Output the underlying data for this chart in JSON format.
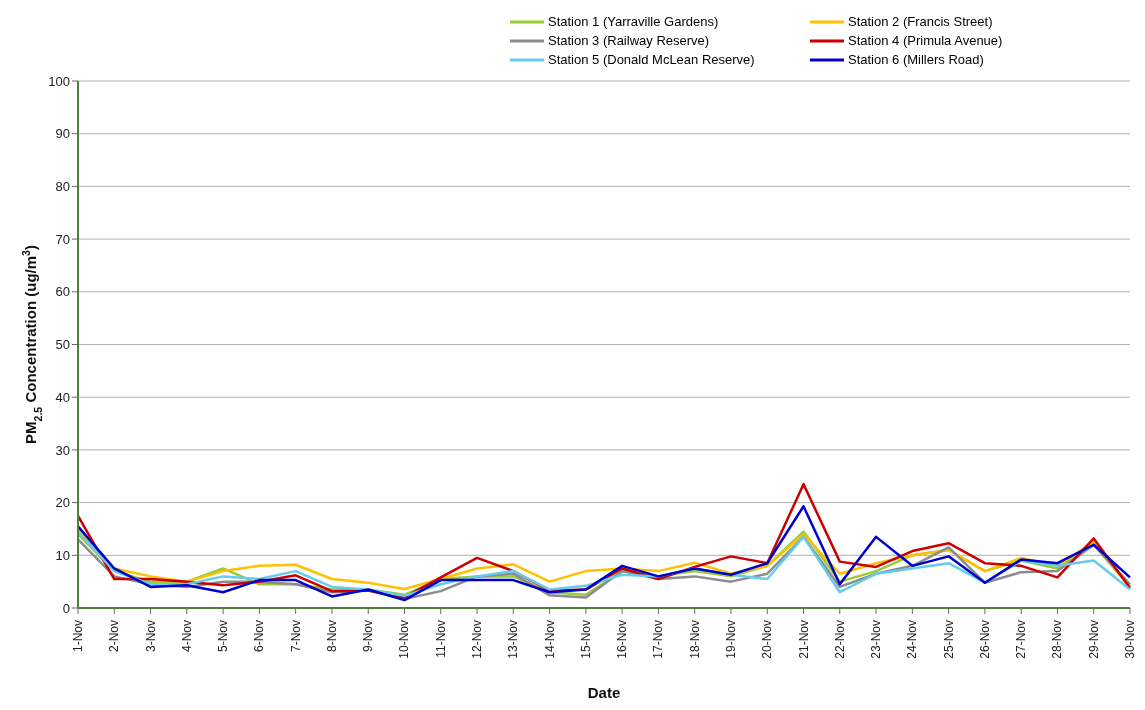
{
  "chart_data": {
    "type": "line",
    "xlabel": "Date",
    "ylabel": "PM$_{2.5}$ Concentration (ug/m$^{3}$)",
    "categories": [
      "1-Nov",
      "2-Nov",
      "3-Nov",
      "4-Nov",
      "5-Nov",
      "6-Nov",
      "7-Nov",
      "8-Nov",
      "9-Nov",
      "10-Nov",
      "11-Nov",
      "12-Nov",
      "13-Nov",
      "14-Nov",
      "15-Nov",
      "16-Nov",
      "17-Nov",
      "18-Nov",
      "19-Nov",
      "20-Nov",
      "21-Nov",
      "22-Nov",
      "23-Nov",
      "24-Nov",
      "25-Nov",
      "26-Nov",
      "27-Nov",
      "28-Nov",
      "29-Nov",
      "30-Nov"
    ],
    "series": [
      {
        "name": "Station 1 (Yarraville Gardens)",
        "color": "#99cc33",
        "values": [
          14,
          7,
          5,
          5,
          7.5,
          4.5,
          4.5,
          3.5,
          3.5,
          2.5,
          5.5,
          6,
          6,
          3,
          2.5,
          7,
          6,
          7,
          6,
          8,
          14.5,
          5,
          7,
          10,
          11,
          7,
          9,
          7.5,
          12,
          4
        ]
      },
      {
        "name": "Station 2 (Francis Street)",
        "color": "#ffc000",
        "values": [
          15,
          7.5,
          6,
          5,
          7,
          8,
          8.2,
          5.5,
          4.8,
          3.6,
          5.5,
          7.5,
          8.3,
          5,
          7,
          7.5,
          7,
          8.6,
          6.5,
          8,
          14,
          6.5,
          8.5,
          10,
          11,
          7,
          9.5,
          8,
          12.5,
          4
        ]
      },
      {
        "name": "Station 3 (Railway Reserve)",
        "color": "#8c8c8c",
        "values": [
          13,
          6,
          4.5,
          4,
          5,
          5,
          4.5,
          3,
          3.3,
          1.7,
          3.2,
          6,
          6.5,
          2.4,
          2,
          7,
          5.5,
          6,
          5,
          6.5,
          13.5,
          4,
          6.5,
          8,
          11.5,
          4.8,
          6.8,
          7,
          12,
          4.5
        ]
      },
      {
        "name": "Station 4 (Primula Avenue)",
        "color": "#cc0000",
        "values": [
          17.5,
          5.5,
          5.5,
          5,
          4.3,
          5,
          6.2,
          3.2,
          3.3,
          2,
          5.8,
          9.5,
          7,
          3.3,
          3.5,
          7.5,
          5.5,
          7.8,
          9.8,
          8.5,
          23.5,
          8.8,
          7.8,
          10.8,
          12.3,
          8.5,
          8,
          5.8,
          13.2,
          3.8
        ]
      },
      {
        "name": "Station 5 (Donald McLean Reserve)",
        "color": "#66ccee",
        "values": [
          14.5,
          7,
          4.5,
          4.5,
          6,
          5.5,
          7,
          4,
          3.5,
          2.3,
          4.5,
          6,
          7,
          3.5,
          4.2,
          6.3,
          6,
          7.5,
          6.3,
          5.5,
          13.5,
          3,
          6.5,
          7.5,
          8.5,
          4.8,
          9,
          8,
          9,
          3.5
        ]
      },
      {
        "name": "Station 6 (Millers Road)",
        "color": "#0000cc",
        "values": [
          15.5,
          7.5,
          4,
          4.3,
          3,
          5.3,
          5.3,
          2.2,
          3.5,
          1.5,
          5.3,
          5.3,
          5.3,
          3,
          3.5,
          8,
          6,
          7.5,
          6.3,
          8.5,
          19.3,
          4.5,
          13.5,
          8,
          9.8,
          4.8,
          9.2,
          8.5,
          12,
          5.8
        ]
      }
    ],
    "ylim": [
      0,
      100
    ],
    "yticks": [
      0,
      10,
      20,
      30,
      40,
      50,
      60,
      70,
      80,
      90,
      100
    ],
    "grid": "y",
    "legend": "top right",
    "marker": "none",
    "line_style": "solid"
  }
}
